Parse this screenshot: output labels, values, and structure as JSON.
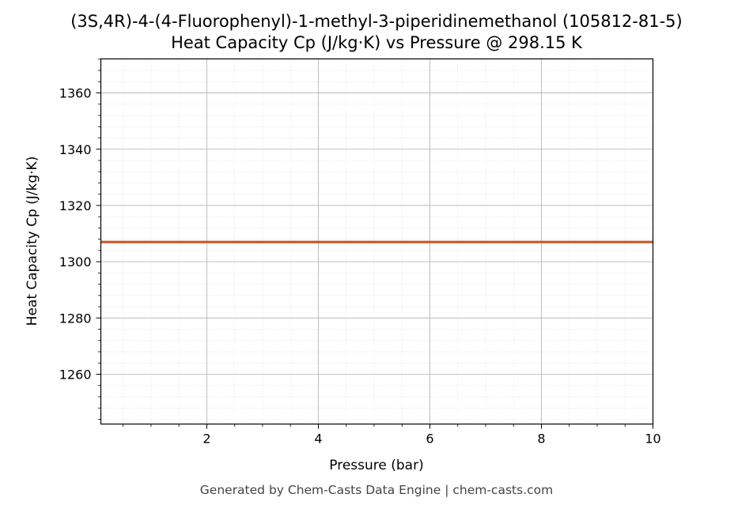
{
  "chart_data": {
    "type": "line",
    "title": "(3S,4R)-4-(4-Fluorophenyl)-1-methyl-3-piperidinemethanol (105812-81-5)",
    "subtitle": "Heat Capacity Cp (J/kg·K) vs Pressure @ 298.15 K",
    "xlabel": "Pressure (bar)",
    "ylabel": "Heat Capacity Cp (J/kg·K)",
    "xlim": [
      0.1,
      10
    ],
    "ylim": [
      1242.3,
      1372.1
    ],
    "x_ticks": [
      2,
      4,
      6,
      8,
      10
    ],
    "x_tick_labels": [
      "2",
      "4",
      "6",
      "8",
      "10"
    ],
    "y_ticks": [
      1260,
      1280,
      1300,
      1320,
      1340,
      1360
    ],
    "y_tick_labels": [
      "1260",
      "1280",
      "1300",
      "1320",
      "1340",
      "1360"
    ],
    "grid": true,
    "legend": false,
    "series": [
      {
        "color": "#cc5529",
        "x": [
          0.1,
          10
        ],
        "y": [
          1307.0,
          1307.0
        ]
      }
    ]
  },
  "footer": "Generated by Chem-Casts Data Engine | chem-casts.com"
}
